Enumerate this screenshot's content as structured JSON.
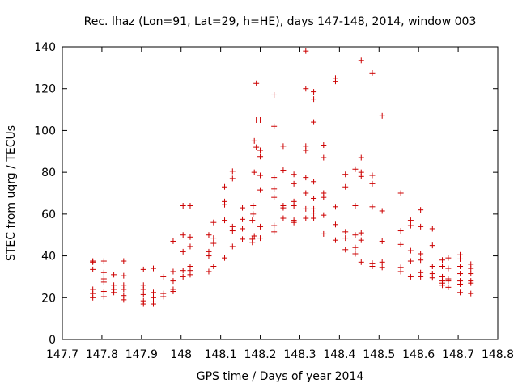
{
  "chart_data": {
    "type": "scatter",
    "title": "Rec. lhaz (Lon=91, Lat=29, h=HE), days 147-148, 2014, window 003",
    "xlabel": "GPS time / Days of year 2014",
    "ylabel": "STEC from uqrg / TECUs",
    "xlim": [
      147.7,
      148.8
    ],
    "ylim": [
      0,
      140
    ],
    "xticks": [
      "147.7",
      "147.8",
      "147.9",
      "148",
      "148.1",
      "148.2",
      "148.3",
      "148.4",
      "148.5",
      "148.6",
      "148.7",
      "148.8"
    ],
    "yticks": [
      "0",
      "20",
      "40",
      "60",
      "80",
      "100",
      "120",
      "140"
    ],
    "grid": false,
    "legend": "none",
    "marker": "plus",
    "color": "#cc0000",
    "points": [
      [
        147.777,
        37.5
      ],
      [
        147.777,
        37.0
      ],
      [
        147.777,
        33.5
      ],
      [
        147.777,
        24.0
      ],
      [
        147.777,
        22.0
      ],
      [
        147.777,
        20.0
      ],
      [
        147.805,
        37.5
      ],
      [
        147.805,
        32.0
      ],
      [
        147.805,
        29.0
      ],
      [
        147.805,
        27.5
      ],
      [
        147.805,
        23.0
      ],
      [
        147.805,
        20.5
      ],
      [
        147.83,
        31.0
      ],
      [
        147.83,
        26.0
      ],
      [
        147.83,
        24.0
      ],
      [
        147.83,
        22.5
      ],
      [
        147.855,
        37.5
      ],
      [
        147.855,
        30.5
      ],
      [
        147.855,
        26.0
      ],
      [
        147.855,
        24.0
      ],
      [
        147.855,
        21.0
      ],
      [
        147.855,
        19.0
      ],
      [
        147.905,
        33.5
      ],
      [
        147.905,
        26.0
      ],
      [
        147.905,
        24.0
      ],
      [
        147.905,
        21.5
      ],
      [
        147.905,
        18.5
      ],
      [
        147.905,
        17.0
      ],
      [
        147.93,
        34.0
      ],
      [
        147.93,
        22.5
      ],
      [
        147.93,
        20.0
      ],
      [
        147.93,
        18.0
      ],
      [
        147.93,
        17.0
      ],
      [
        147.955,
        30.0
      ],
      [
        147.955,
        22.0
      ],
      [
        147.955,
        20.5
      ],
      [
        147.98,
        47.0
      ],
      [
        147.98,
        32.5
      ],
      [
        147.98,
        28.0
      ],
      [
        147.98,
        24.0
      ],
      [
        147.98,
        23.0
      ],
      [
        148.005,
        64.0
      ],
      [
        148.005,
        50.0
      ],
      [
        148.005,
        42.0
      ],
      [
        148.005,
        33.0
      ],
      [
        148.005,
        30.0
      ],
      [
        148.023,
        64.0
      ],
      [
        148.023,
        49.0
      ],
      [
        148.023,
        44.5
      ],
      [
        148.023,
        35.0
      ],
      [
        148.023,
        33.0
      ],
      [
        148.023,
        31.0
      ],
      [
        148.07,
        50.0
      ],
      [
        148.07,
        42.0
      ],
      [
        148.07,
        40.0
      ],
      [
        148.07,
        32.5
      ],
      [
        148.082,
        56.0
      ],
      [
        148.082,
        48.5
      ],
      [
        148.082,
        46.0
      ],
      [
        148.082,
        35.0
      ],
      [
        148.11,
        73.0
      ],
      [
        148.11,
        66.0
      ],
      [
        148.11,
        64.5
      ],
      [
        148.11,
        57.0
      ],
      [
        148.11,
        39.0
      ],
      [
        148.13,
        80.5
      ],
      [
        148.13,
        77.0
      ],
      [
        148.13,
        54.0
      ],
      [
        148.13,
        52.0
      ],
      [
        148.13,
        44.5
      ],
      [
        148.155,
        63.0
      ],
      [
        148.155,
        57.5
      ],
      [
        148.155,
        53.0
      ],
      [
        148.155,
        48.0
      ],
      [
        148.18,
        57.0
      ],
      [
        148.18,
        48.0
      ],
      [
        148.18,
        46.5
      ],
      [
        148.182,
        64.0
      ],
      [
        148.182,
        60.0
      ],
      [
        148.185,
        95.0
      ],
      [
        148.185,
        80.0
      ],
      [
        148.185,
        49.5
      ],
      [
        148.19,
        122.5
      ],
      [
        148.19,
        105.0
      ],
      [
        148.19,
        92.0
      ],
      [
        148.2,
        105.0
      ],
      [
        148.2,
        90.5
      ],
      [
        148.2,
        87.5
      ],
      [
        148.2,
        78.5
      ],
      [
        148.2,
        71.5
      ],
      [
        148.2,
        54.0
      ],
      [
        148.2,
        48.5
      ],
      [
        148.235,
        117.0
      ],
      [
        148.235,
        102.0
      ],
      [
        148.235,
        77.5
      ],
      [
        148.235,
        72.0
      ],
      [
        148.235,
        68.0
      ],
      [
        148.235,
        54.5
      ],
      [
        148.235,
        51.5
      ],
      [
        148.258,
        92.5
      ],
      [
        148.258,
        81.0
      ],
      [
        148.258,
        64.0
      ],
      [
        148.258,
        63.0
      ],
      [
        148.258,
        58.0
      ],
      [
        148.285,
        79.0
      ],
      [
        148.285,
        74.5
      ],
      [
        148.285,
        66.0
      ],
      [
        148.285,
        64.0
      ],
      [
        148.285,
        57.0
      ],
      [
        148.285,
        56.0
      ],
      [
        148.315,
        138.0
      ],
      [
        148.315,
        120.0
      ],
      [
        148.315,
        92.5
      ],
      [
        148.315,
        90.5
      ],
      [
        148.315,
        77.5
      ],
      [
        148.315,
        70.0
      ],
      [
        148.315,
        62.5
      ],
      [
        148.315,
        58.0
      ],
      [
        148.335,
        118.5
      ],
      [
        148.335,
        115.0
      ],
      [
        148.335,
        104.0
      ],
      [
        148.335,
        75.5
      ],
      [
        148.335,
        67.5
      ],
      [
        148.335,
        62.5
      ],
      [
        148.335,
        60.5
      ],
      [
        148.335,
        58.0
      ],
      [
        148.36,
        93.0
      ],
      [
        148.36,
        87.0
      ],
      [
        148.36,
        70.0
      ],
      [
        148.36,
        68.0
      ],
      [
        148.36,
        59.5
      ],
      [
        148.36,
        50.5
      ],
      [
        148.39,
        125.0
      ],
      [
        148.39,
        123.5
      ],
      [
        148.39,
        63.5
      ],
      [
        148.39,
        55.0
      ],
      [
        148.39,
        47.5
      ],
      [
        148.415,
        79.0
      ],
      [
        148.415,
        73.0
      ],
      [
        148.415,
        51.5
      ],
      [
        148.415,
        48.5
      ],
      [
        148.415,
        43.0
      ],
      [
        148.44,
        81.5
      ],
      [
        148.44,
        64.0
      ],
      [
        148.44,
        50.0
      ],
      [
        148.44,
        44.0
      ],
      [
        148.44,
        41.0
      ],
      [
        148.455,
        133.5
      ],
      [
        148.455,
        87.0
      ],
      [
        148.455,
        80.0
      ],
      [
        148.455,
        78.0
      ],
      [
        148.455,
        51.0
      ],
      [
        148.455,
        47.5
      ],
      [
        148.455,
        37.0
      ],
      [
        148.483,
        127.5
      ],
      [
        148.483,
        78.5
      ],
      [
        148.483,
        74.5
      ],
      [
        148.483,
        63.5
      ],
      [
        148.483,
        36.5
      ],
      [
        148.483,
        35.0
      ],
      [
        148.508,
        107.0
      ],
      [
        148.508,
        61.5
      ],
      [
        148.508,
        47.0
      ],
      [
        148.508,
        37.0
      ],
      [
        148.508,
        34.5
      ],
      [
        148.555,
        70.0
      ],
      [
        148.555,
        52.0
      ],
      [
        148.555,
        45.5
      ],
      [
        148.555,
        34.5
      ],
      [
        148.555,
        32.5
      ],
      [
        148.58,
        57.0
      ],
      [
        148.58,
        54.5
      ],
      [
        148.58,
        42.5
      ],
      [
        148.58,
        37.5
      ],
      [
        148.58,
        30.0
      ],
      [
        148.605,
        62.0
      ],
      [
        148.605,
        54.0
      ],
      [
        148.605,
        41.0
      ],
      [
        148.605,
        38.0
      ],
      [
        148.605,
        32.0
      ],
      [
        148.605,
        30.0
      ],
      [
        148.635,
        53.0
      ],
      [
        148.635,
        45.0
      ],
      [
        148.635,
        35.0
      ],
      [
        148.635,
        31.5
      ],
      [
        148.635,
        29.5
      ],
      [
        148.66,
        38.0
      ],
      [
        148.66,
        35.0
      ],
      [
        148.66,
        30.0
      ],
      [
        148.66,
        28.0
      ],
      [
        148.66,
        27.0
      ],
      [
        148.66,
        26.0
      ],
      [
        148.675,
        39.0
      ],
      [
        148.675,
        34.0
      ],
      [
        148.675,
        29.0
      ],
      [
        148.675,
        28.0
      ],
      [
        148.675,
        25.0
      ],
      [
        148.705,
        40.5
      ],
      [
        148.705,
        38.5
      ],
      [
        148.705,
        35.0
      ],
      [
        148.705,
        31.5
      ],
      [
        148.705,
        28.0
      ],
      [
        148.705,
        26.5
      ],
      [
        148.705,
        22.5
      ],
      [
        148.732,
        36.0
      ],
      [
        148.732,
        34.0
      ],
      [
        148.732,
        31.5
      ],
      [
        148.732,
        28.0
      ],
      [
        148.732,
        27.0
      ],
      [
        148.732,
        22.0
      ]
    ]
  }
}
